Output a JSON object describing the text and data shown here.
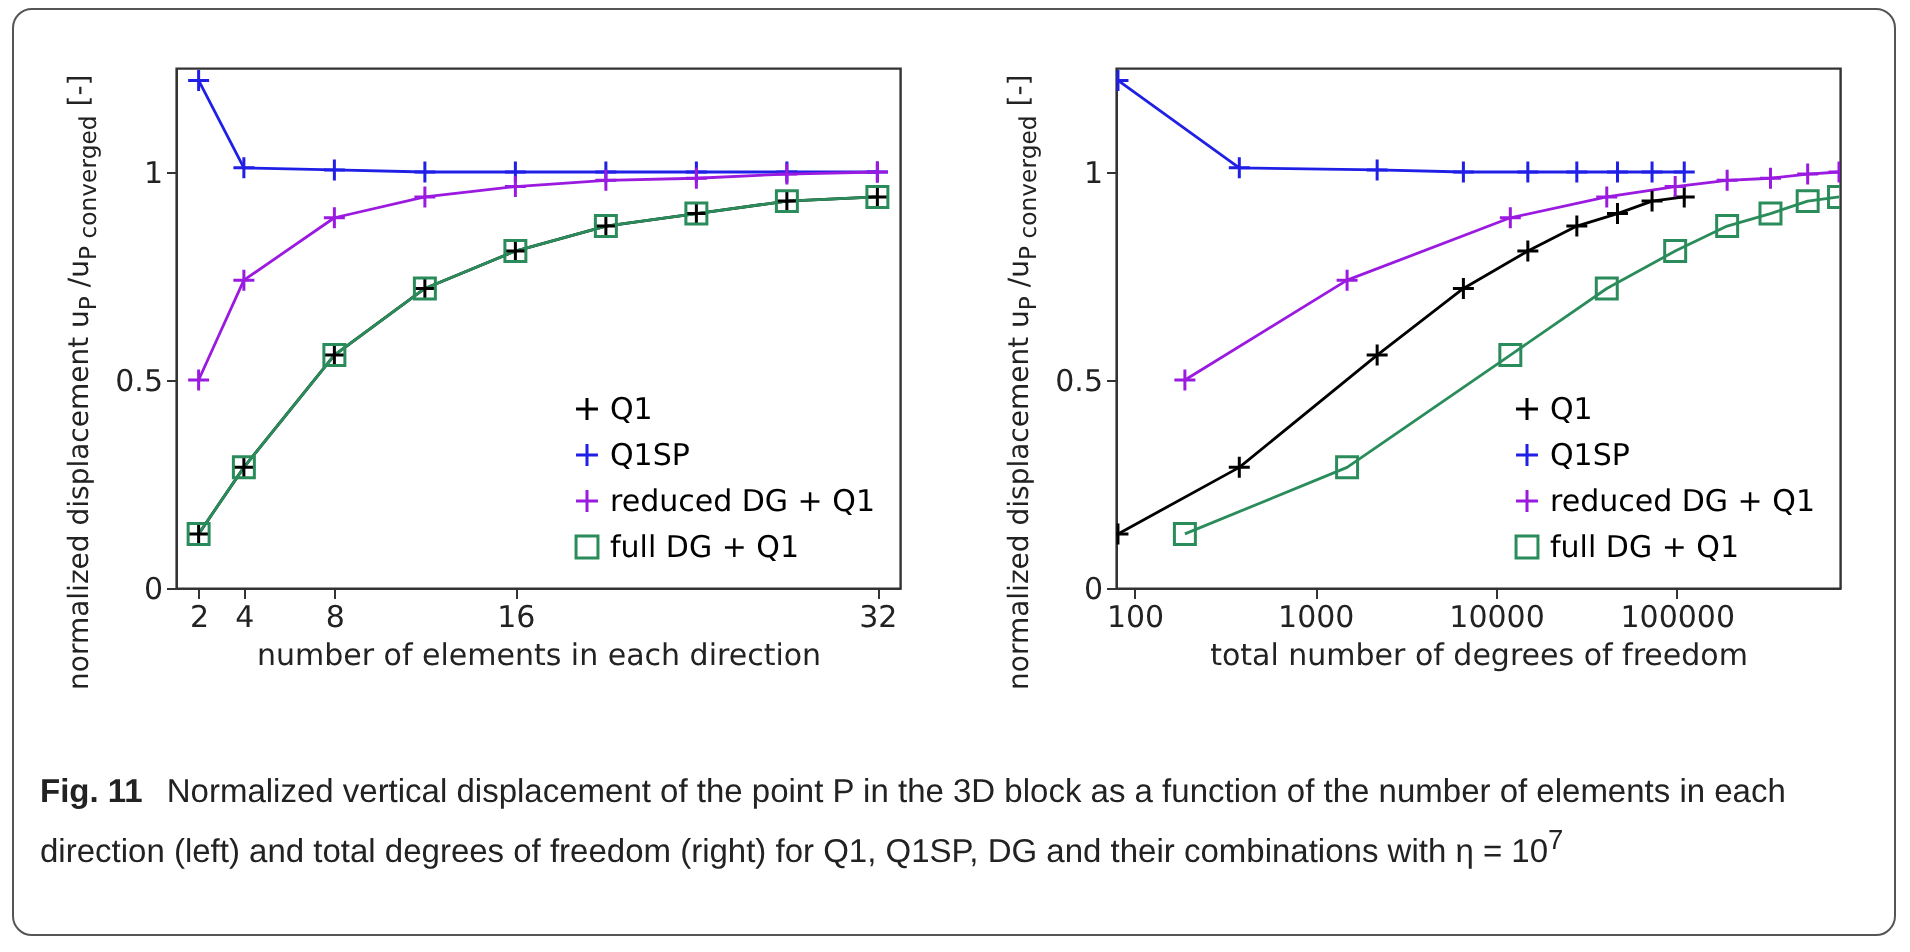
{
  "chart_data": [
    {
      "type": "line",
      "xlabel": "number of elements in each direction",
      "ylabel": "normalized displacement u$_{P}$ /u$_{P converged}$ [-]",
      "x": [
        2,
        4,
        8,
        12,
        16,
        20,
        24,
        28,
        32
      ],
      "xlim": [
        1,
        33
      ],
      "xticks": [
        2,
        4,
        8,
        16,
        32
      ],
      "ylim": [
        0,
        1.25
      ],
      "yticks": [
        0,
        0.5,
        1
      ],
      "legend": "bottom right",
      "grid": false,
      "series": [
        {
          "name": "Q1",
          "color": "#000000",
          "marker": "cross",
          "values": [
            0.13,
            0.29,
            0.56,
            0.72,
            0.81,
            0.87,
            0.9,
            0.93,
            0.94
          ]
        },
        {
          "name": "Q1SP",
          "color": "#1f1fe6",
          "marker": "cross",
          "values": [
            1.22,
            1.01,
            1.005,
            1.0,
            1.0,
            1.0,
            1.0,
            1.0,
            1.0
          ]
        },
        {
          "name": "reduced DG + Q1",
          "color": "#9a1ae0",
          "marker": "cross",
          "values": [
            0.5,
            0.74,
            0.89,
            0.94,
            0.965,
            0.98,
            0.985,
            0.995,
            1.0
          ]
        },
        {
          "name": "full DG + Q1",
          "color": "#2a8c5a",
          "marker": "square",
          "values": [
            0.13,
            0.29,
            0.56,
            0.72,
            0.81,
            0.87,
            0.9,
            0.93,
            0.94
          ]
        }
      ],
      "annotations": [
        "Fig. 11",
        "Normalized vertical displacement of the point P in the 3D block as a function of the number of elements in each direction (left) and total degrees of freedom (right) for Q1, Q1SP, DG and their combinations with η = 10$^{7}$"
      ]
    },
    {
      "type": "line",
      "xlabel": "total number of degrees of freedom",
      "ylabel": "normalized displacement u$_{P}$ /u$_{P converged}$ [-]",
      "log": "x",
      "xlim": [
        79,
        800000
      ],
      "xticks": [
        100,
        1000,
        10000,
        100000
      ],
      "ylim": [
        0,
        1.25
      ],
      "yticks": [
        0,
        0.5,
        1
      ],
      "legend": "bottom right",
      "grid": false,
      "series": [
        {
          "name": "Q1",
          "color": "#000000",
          "marker": "cross",
          "x": [
            81,
            380,
            2200,
            6600,
            15000,
            28000,
            47000,
            73000,
            110000
          ],
          "values": [
            0.13,
            0.29,
            0.56,
            0.72,
            0.81,
            0.87,
            0.9,
            0.93,
            0.94
          ]
        },
        {
          "name": "Q1SP",
          "color": "#1f1fe6",
          "marker": "cross",
          "x": [
            81,
            380,
            2200,
            6600,
            15000,
            28000,
            47000,
            73000,
            110000
          ],
          "values": [
            1.22,
            1.01,
            1.005,
            1.0,
            1.0,
            1.0,
            1.0,
            1.0,
            1.0
          ]
        },
        {
          "name": "reduced DG + Q1",
          "color": "#9a1ae0",
          "marker": "cross",
          "x": [
            190,
            1500,
            12000,
            41000,
            98000,
            190000,
            330000,
            530000,
            790000
          ],
          "values": [
            0.5,
            0.74,
            0.89,
            0.94,
            0.965,
            0.98,
            0.985,
            0.995,
            1.0
          ]
        },
        {
          "name": "full DG + Q1",
          "color": "#2a8c5a",
          "marker": "square",
          "x": [
            190,
            1500,
            12000,
            41000,
            98000,
            190000,
            330000,
            530000,
            790000
          ],
          "values": [
            0.13,
            0.29,
            0.56,
            0.72,
            0.81,
            0.87,
            0.9,
            0.93,
            0.94
          ]
        }
      ]
    }
  ]
}
